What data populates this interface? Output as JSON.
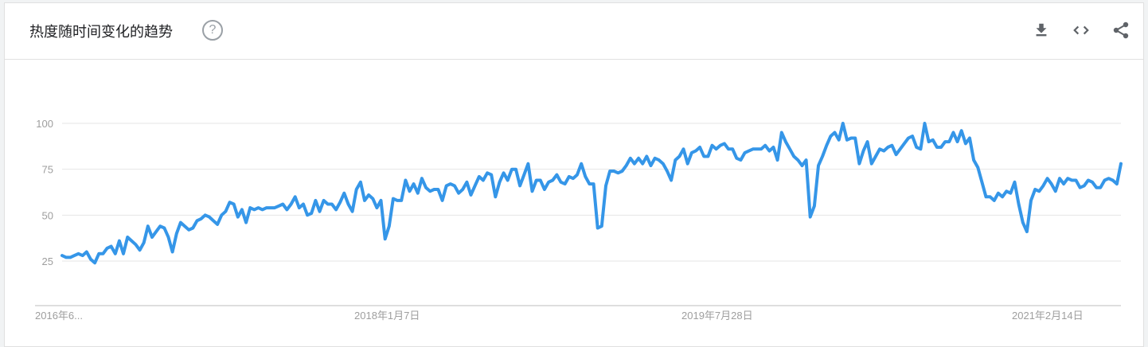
{
  "header": {
    "title": "热度随时间变化的趋势",
    "help_icon": "help-circle-icon",
    "tools": [
      "download-icon",
      "embed-code-icon",
      "share-icon"
    ]
  },
  "colors": {
    "line": "#3596e8",
    "grid": "#e6e6e6",
    "axis": "#9e9e9e",
    "title": "#202124"
  },
  "chart_data": {
    "type": "line",
    "title": "",
    "xlabel": "",
    "ylabel": "",
    "ylim": [
      0,
      100
    ],
    "yticks": [
      "25",
      "50",
      "75",
      "100"
    ],
    "xticks": [
      "2016年6...",
      "2018年1月7日",
      "2019年7月28日",
      "2021年2月14日"
    ],
    "grid": true,
    "series": [
      {
        "name": "",
        "values": [
          28,
          27,
          27,
          28,
          29,
          28,
          30,
          26,
          24,
          29,
          29,
          32,
          33,
          29,
          36,
          29,
          38,
          36,
          34,
          31,
          35,
          44,
          38,
          41,
          44,
          43,
          38,
          30,
          40,
          46,
          44,
          42,
          43,
          47,
          48,
          50,
          49,
          47,
          45,
          50,
          52,
          57,
          56,
          49,
          53,
          46,
          54,
          53,
          54,
          53,
          54,
          54,
          54,
          55,
          56,
          53,
          56,
          60,
          54,
          56,
          50,
          51,
          58,
          52,
          58,
          56,
          56,
          53,
          57,
          62,
          56,
          52,
          64,
          68,
          58,
          61,
          59,
          54,
          58,
          37,
          44,
          59,
          58,
          58,
          69,
          63,
          67,
          62,
          70,
          65,
          63,
          64,
          64,
          58,
          66,
          67,
          66,
          62,
          64,
          68,
          61,
          66,
          71,
          69,
          73,
          72,
          60,
          68,
          73,
          69,
          75,
          75,
          66,
          72,
          78,
          63,
          69,
          69,
          64,
          68,
          69,
          72,
          68,
          67,
          71,
          70,
          72,
          78,
          71,
          67,
          67,
          43,
          44,
          66,
          74,
          74,
          73,
          74,
          77,
          81,
          78,
          81,
          78,
          82,
          77,
          81,
          80,
          78,
          74,
          69,
          80,
          82,
          86,
          78,
          84,
          85,
          87,
          82,
          82,
          88,
          86,
          88,
          89,
          86,
          86,
          81,
          80,
          84,
          85,
          86,
          86,
          86,
          88,
          85,
          87,
          80,
          95,
          90,
          86,
          82,
          80,
          77,
          80,
          49,
          55,
          77,
          82,
          88,
          93,
          95,
          91,
          100,
          91,
          92,
          92,
          78,
          85,
          90,
          78,
          82,
          86,
          85,
          87,
          88,
          83,
          86,
          89,
          92,
          93,
          87,
          86,
          100,
          90,
          91,
          87,
          87,
          90,
          90,
          95,
          90,
          96,
          89,
          92,
          80,
          76,
          68,
          60,
          60,
          58,
          62,
          60,
          63,
          62,
          68,
          56,
          46,
          41,
          58,
          64,
          63,
          66,
          70,
          67,
          63,
          70,
          67,
          70,
          69,
          69,
          65,
          66,
          69,
          68,
          65,
          65,
          69,
          70,
          69,
          67,
          78
        ]
      }
    ]
  }
}
